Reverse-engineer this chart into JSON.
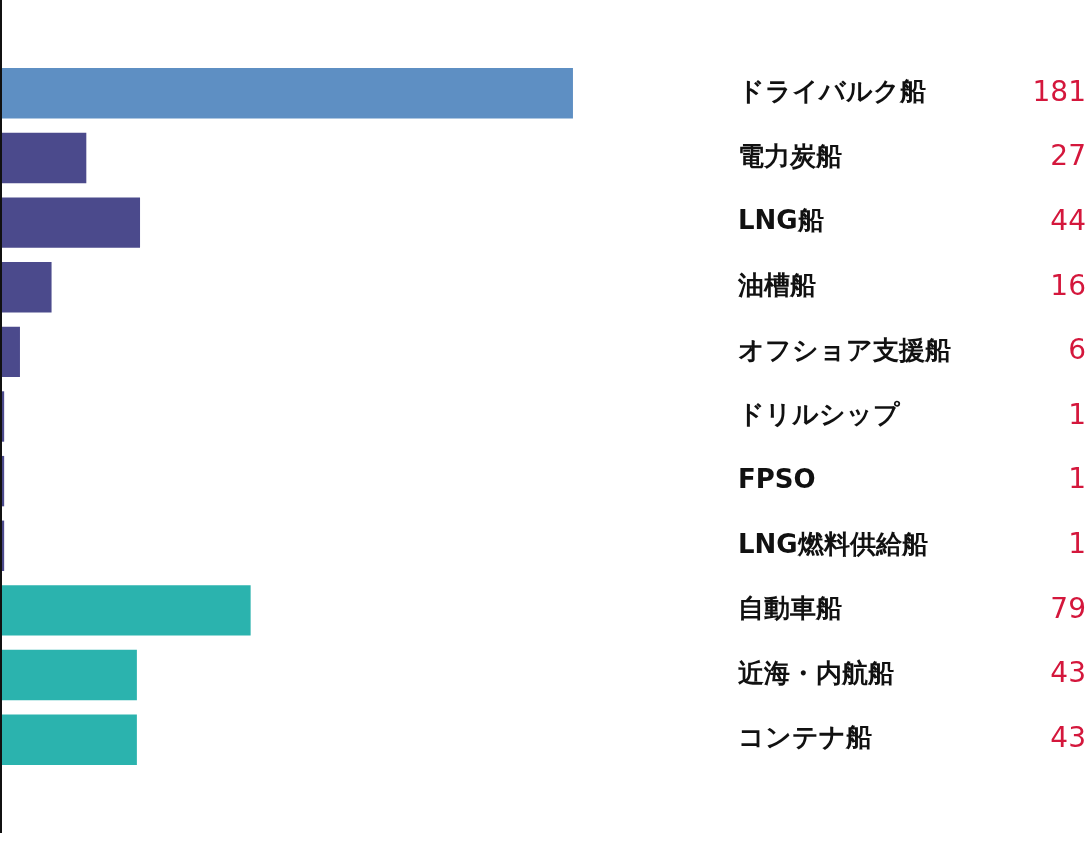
{
  "chart_data": {
    "type": "bar",
    "orientation": "horizontal",
    "categories": [
      "ドライバルク船",
      "電力炭船",
      "LNG船",
      "油槽船",
      "オフショア支援船",
      "ドリルシップ",
      "FPSO",
      "LNG燃料供給船",
      "自動車船",
      "近海・内航船",
      "コンテナ船"
    ],
    "values": [
      181,
      27,
      44,
      16,
      6,
      1,
      1,
      1,
      79,
      43,
      43
    ],
    "colors": [
      "#5e8fc3",
      "#4b4a8c",
      "#4b4a8c",
      "#4b4a8c",
      "#4b4a8c",
      "#4b4a8c",
      "#4b4a8c",
      "#4b4a8c",
      "#2bb3ae",
      "#2bb3ae",
      "#2bb3ae"
    ],
    "data_labels": true,
    "legend": false
  }
}
